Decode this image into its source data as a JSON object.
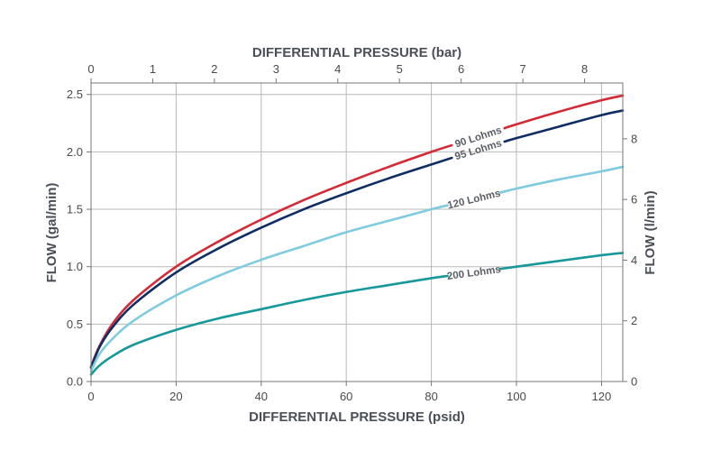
{
  "chart_data": {
    "type": "line",
    "xlabel": "DIFFERENTIAL PRESSURE (psid)",
    "x2label": "DIFFERENTIAL PRESSURE (bar)",
    "ylabel": "FLOW (gal/min)",
    "y2label": "FLOW (l/min)",
    "xlim": [
      0,
      125
    ],
    "ylim": [
      0,
      2.6
    ],
    "x2lim": [
      0,
      8.62
    ],
    "y2lim": [
      0,
      9.84
    ],
    "xticks": [
      0,
      20,
      40,
      60,
      80,
      100,
      120
    ],
    "x2ticks": [
      0,
      1,
      2,
      3,
      4,
      5,
      6,
      7,
      8
    ],
    "yticks": [
      0.0,
      0.5,
      1.0,
      1.5,
      2.0,
      2.5
    ],
    "yticklabels": [
      "0.0",
      "0.5",
      "1.0",
      "1.5",
      "2.0",
      "2.5"
    ],
    "y2ticks": [
      0,
      2,
      4,
      6,
      8
    ],
    "grid": true,
    "x": [
      0,
      2,
      5,
      10,
      20,
      30,
      40,
      50,
      60,
      70,
      80,
      90,
      100,
      110,
      120,
      125
    ],
    "series": [
      {
        "name": "90 Lohms",
        "color": "#d42a36",
        "values": [
          0.13,
          0.31,
          0.5,
          0.71,
          1.0,
          1.22,
          1.41,
          1.58,
          1.73,
          1.87,
          2.0,
          2.12,
          2.24,
          2.35,
          2.45,
          2.49
        ],
        "label_at": 91
      },
      {
        "name": "95 Lohms",
        "color": "#0f2d63",
        "values": [
          0.12,
          0.3,
          0.47,
          0.67,
          0.95,
          1.16,
          1.34,
          1.5,
          1.64,
          1.77,
          1.89,
          2.01,
          2.12,
          2.22,
          2.32,
          2.36
        ],
        "label_at": 91
      },
      {
        "name": "120 Lohms",
        "color": "#7fcbe0",
        "values": [
          0.09,
          0.24,
          0.37,
          0.53,
          0.75,
          0.92,
          1.06,
          1.18,
          1.3,
          1.4,
          1.5,
          1.59,
          1.68,
          1.76,
          1.83,
          1.87
        ],
        "label_at": 90
      },
      {
        "name": "200 Lohms",
        "color": "#17989a",
        "values": [
          0.06,
          0.14,
          0.22,
          0.32,
          0.45,
          0.55,
          0.63,
          0.71,
          0.78,
          0.84,
          0.9,
          0.95,
          1.0,
          1.05,
          1.1,
          1.12
        ],
        "label_at": 90
      }
    ]
  }
}
